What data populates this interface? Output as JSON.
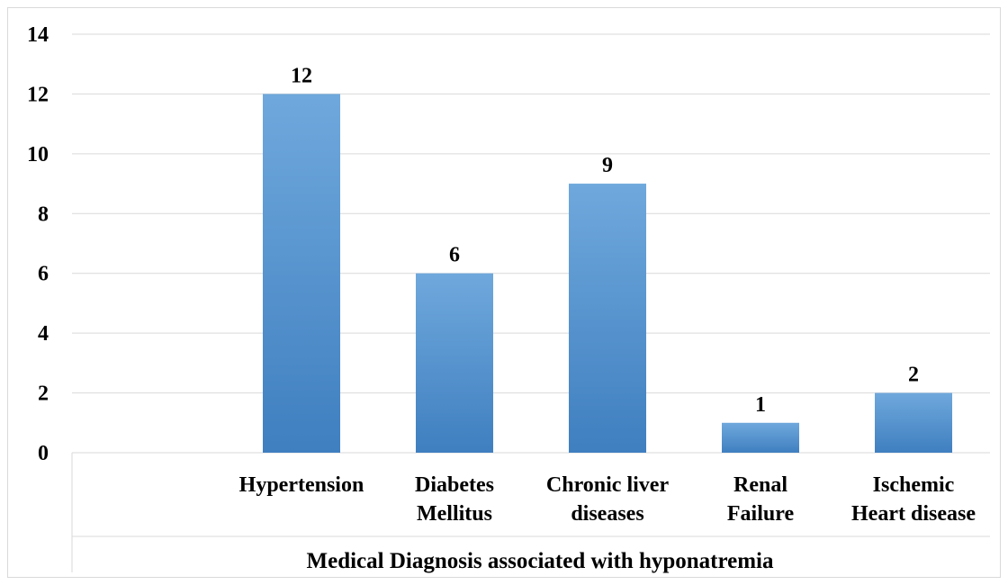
{
  "chart_data": {
    "type": "bar",
    "categories": [
      [
        "Hypertension"
      ],
      [
        "Diabetes",
        "Mellitus"
      ],
      [
        "Chronic liver",
        "diseases"
      ],
      [
        "Renal",
        "Failure"
      ],
      [
        "Ischemic",
        "Heart disease"
      ]
    ],
    "values": [
      12,
      6,
      9,
      1,
      2
    ],
    "data_labels": [
      "12",
      "6",
      "9",
      "1",
      "2"
    ],
    "y_ticks": [
      "0",
      "2",
      "4",
      "6",
      "8",
      "10",
      "12",
      "14"
    ],
    "ylim": [
      0,
      14
    ],
    "xlabel": "Medical Diagnosis associated with hyponatremia",
    "grid": true,
    "bar_color": "#5b9bd5"
  }
}
